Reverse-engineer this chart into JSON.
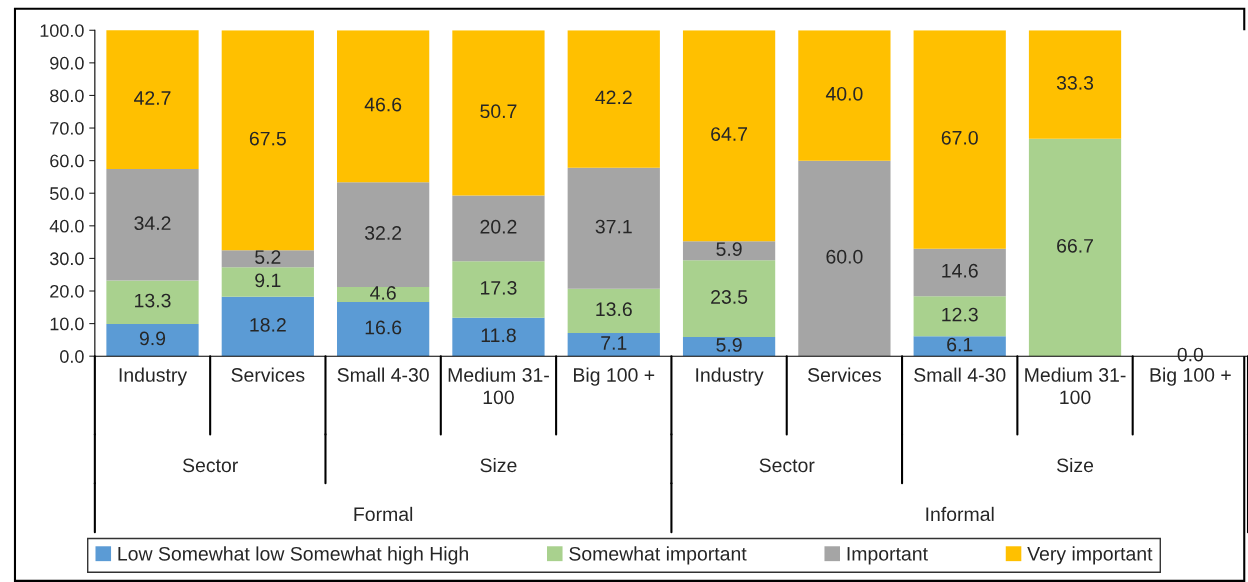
{
  "chart_data": {
    "type": "bar",
    "stacked": true,
    "categories": [
      "Industry",
      "Services",
      "Small 4-30",
      "Medium 31-100",
      "Big 100 +",
      "Industry",
      "Services",
      "Small 4-30",
      "Medium 31-100",
      "Big 100 +"
    ],
    "series": [
      {
        "name": "Low Somewhat low Somewhat high High",
        "color": "#5b9bd5",
        "values": [
          9.9,
          18.2,
          16.6,
          11.8,
          7.1,
          5.9,
          0,
          6.1,
          0,
          0
        ],
        "value_labels": [
          "9.9",
          "18.2",
          "16.6",
          "11.8",
          "7.1",
          "5.9",
          null,
          "6.1",
          null,
          "0.0"
        ]
      },
      {
        "name": "Somewhat important",
        "color": "#a9d18e",
        "values": [
          13.3,
          9.1,
          4.6,
          17.3,
          13.6,
          23.5,
          0,
          12.3,
          66.7,
          0
        ],
        "value_labels": [
          "13.3",
          "9.1",
          "4.6",
          "17.3",
          "13.6",
          "23.5",
          null,
          "12.3",
          "66.7",
          null
        ]
      },
      {
        "name": "Important",
        "color": "#a5a5a5",
        "values": [
          34.2,
          5.2,
          32.2,
          20.2,
          37.1,
          5.9,
          60.0,
          14.6,
          0,
          0
        ],
        "value_labels": [
          "34.2",
          "5.2",
          "32.2",
          "20.2",
          "37.1",
          "5.9",
          "60.0",
          "14.6",
          null,
          null
        ]
      },
      {
        "name": "Very important",
        "color": "#ffc000",
        "values": [
          42.7,
          67.5,
          46.6,
          50.7,
          42.2,
          64.7,
          40.0,
          67.0,
          33.3,
          0
        ],
        "value_labels": [
          "42.7",
          "67.5",
          "46.6",
          "50.7",
          "42.2",
          "64.7",
          "40.0",
          "67.0",
          "33.3",
          null
        ]
      }
    ],
    "annotations": [
      "Sector",
      "Size",
      "Sector",
      "Size",
      "Formal",
      "Informal"
    ],
    "ylim": [
      0,
      100
    ],
    "yticks": [
      {
        "value": 0,
        "label": "0.0"
      },
      {
        "value": 10,
        "label": "10.0"
      },
      {
        "value": 20,
        "label": "20.0"
      },
      {
        "value": 30,
        "label": "30.0"
      },
      {
        "value": 40,
        "label": "40.0"
      },
      {
        "value": 50,
        "label": "50.0"
      },
      {
        "value": 60,
        "label": "60.0"
      },
      {
        "value": 70,
        "label": "70.0"
      },
      {
        "value": 80,
        "label": "80.0"
      },
      {
        "value": 90,
        "label": "90.0"
      },
      {
        "value": 100,
        "label": "100.0"
      }
    ],
    "grid": false,
    "legend": "bottom"
  }
}
